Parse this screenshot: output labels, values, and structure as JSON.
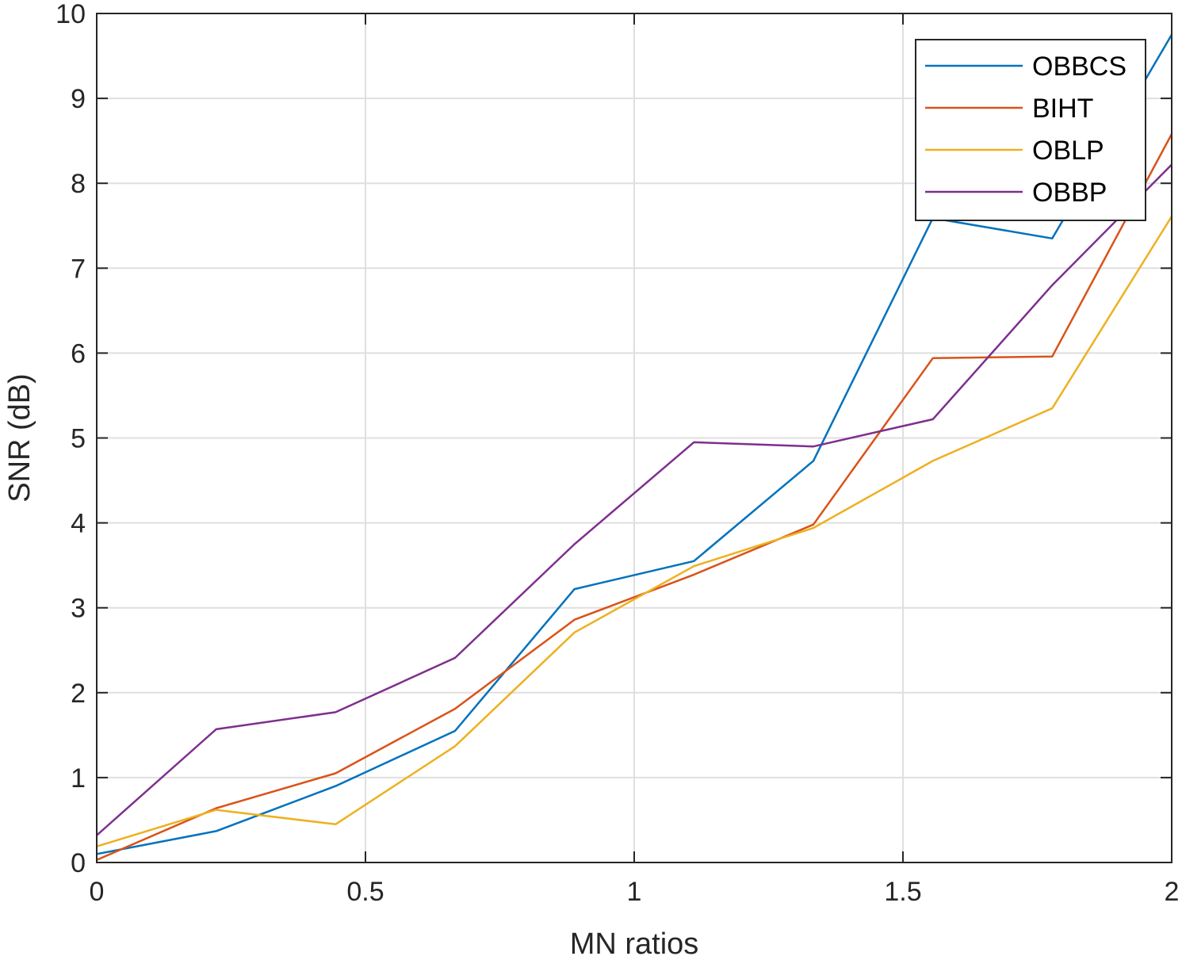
{
  "chart_data": {
    "type": "line",
    "title": "",
    "xlabel": "MN ratios",
    "ylabel": "SNR (dB)",
    "xlim": [
      0,
      2
    ],
    "ylim": [
      0,
      10
    ],
    "x_ticks": [
      "0",
      "0.5",
      "1",
      "1.5",
      "2"
    ],
    "y_ticks": [
      "0",
      "1",
      "2",
      "3",
      "4",
      "5",
      "6",
      "7",
      "8",
      "9",
      "10"
    ],
    "grid": true,
    "legend_position": "top-right",
    "x": [
      0,
      0.2222,
      0.4444,
      0.6667,
      0.8889,
      1.1111,
      1.3333,
      1.5556,
      1.7778,
      2.0
    ],
    "series": [
      {
        "name": "OBBCS",
        "color": "#0072BD",
        "values": [
          0.1,
          0.37,
          0.9,
          1.55,
          3.22,
          3.55,
          4.73,
          7.59,
          7.35,
          9.75
        ]
      },
      {
        "name": "BIHT",
        "color": "#D95319",
        "values": [
          0.03,
          0.64,
          1.05,
          1.81,
          2.86,
          3.39,
          3.98,
          5.94,
          5.96,
          8.58
        ]
      },
      {
        "name": "OBLP",
        "color": "#EDB120",
        "values": [
          0.19,
          0.62,
          0.45,
          1.37,
          2.71,
          3.49,
          3.94,
          4.73,
          5.35,
          7.61
        ]
      },
      {
        "name": "OBBP",
        "color": "#7E2F8E",
        "values": [
          0.32,
          1.57,
          1.77,
          2.41,
          3.75,
          4.95,
          4.9,
          5.22,
          6.8,
          8.22
        ]
      }
    ]
  }
}
